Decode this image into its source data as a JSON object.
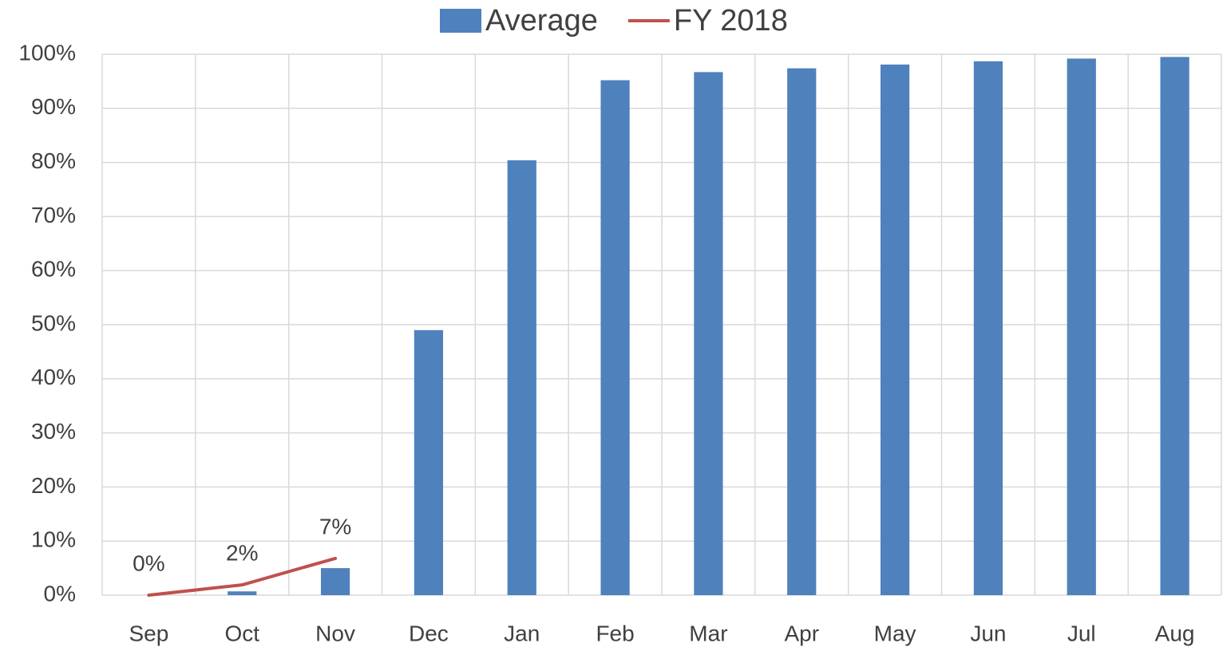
{
  "chart_data": {
    "type": "bar",
    "categories": [
      "Sep",
      "Oct",
      "Nov",
      "Dec",
      "Jan",
      "Feb",
      "Mar",
      "Apr",
      "May",
      "Jun",
      "Jul",
      "Aug"
    ],
    "series": [
      {
        "name": "Average",
        "color": "#4f81bd",
        "type": "bar",
        "values": [
          0,
          0.7,
          5,
          49,
          80.4,
          95.2,
          96.7,
          97.4,
          98.1,
          98.7,
          99.2,
          99.5
        ]
      },
      {
        "name": "FY 2018",
        "color": "#c0504d",
        "type": "line",
        "values": [
          0,
          1.9,
          6.8,
          null,
          null,
          null,
          null,
          null,
          null,
          null,
          null,
          null
        ],
        "value_labels": [
          "0%",
          "2%",
          "7%",
          null,
          null,
          null,
          null,
          null,
          null,
          null,
          null,
          null
        ]
      }
    ],
    "ylim": [
      0,
      100
    ],
    "yticks": [
      {
        "value": 0,
        "label": "0%"
      },
      {
        "value": 10,
        "label": "10%"
      },
      {
        "value": 20,
        "label": "20%"
      },
      {
        "value": 30,
        "label": "30%"
      },
      {
        "value": 40,
        "label": "40%"
      },
      {
        "value": 50,
        "label": "50%"
      },
      {
        "value": 60,
        "label": "60%"
      },
      {
        "value": 70,
        "label": "70%"
      },
      {
        "value": 80,
        "label": "80%"
      },
      {
        "value": 90,
        "label": "90%"
      },
      {
        "value": 100,
        "label": "100%"
      }
    ],
    "grid": true,
    "legend": "top"
  }
}
